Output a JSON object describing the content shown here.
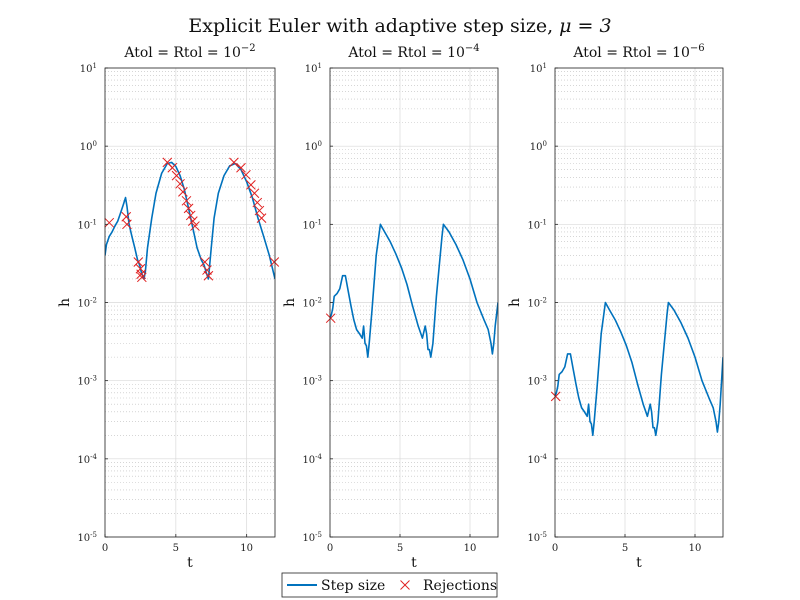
{
  "figure": {
    "title_prefix": "Explicit Euler with adaptive step size, ",
    "title_math": "μ = 3"
  },
  "legend": {
    "entries": [
      "Step size",
      "Rejections"
    ]
  },
  "colors": {
    "line": "#0072BD",
    "marker": "#E02020",
    "major_grid": "#d9d9d9",
    "minor_grid": "#bdbdbd",
    "axis": "#222222"
  },
  "chart_data": [
    {
      "type": "line",
      "title": "Atol = Rtol = 10",
      "title_exp": "−2",
      "xlabel": "t",
      "ylabel": "h",
      "xlim": [
        0,
        12
      ],
      "ylim": [
        1e-05,
        10
      ],
      "yscale": "log",
      "grid": "major+minor",
      "xticks": [
        0,
        5,
        10
      ],
      "xtick_labels": [
        "0",
        "5",
        "10"
      ],
      "yticks": [
        1e-05,
        0.0001,
        0.001,
        0.01,
        0.1,
        1,
        10
      ],
      "ytick_bases": [
        "10",
        "10",
        "10",
        "10",
        "10",
        "10",
        "10"
      ],
      "ytick_exps": [
        "-5",
        "-4",
        "-3",
        "-2",
        "-1",
        "0",
        "1"
      ],
      "series": [
        {
          "name": "Step size",
          "x": [
            0,
            0.1,
            0.3,
            0.5,
            0.7,
            0.9,
            1.1,
            1.3,
            1.45,
            1.55,
            1.7,
            1.9,
            2.1,
            2.3,
            2.45,
            2.55,
            2.65,
            2.75,
            2.85,
            3.0,
            3.3,
            3.6,
            4.0,
            4.4,
            4.7,
            5.0,
            5.3,
            5.6,
            5.9,
            6.2,
            6.5,
            6.8,
            7.0,
            7.15,
            7.3,
            7.5,
            7.7,
            8.0,
            8.4,
            8.8,
            9.2,
            9.6,
            10.0,
            10.4,
            10.8,
            11.2,
            11.6,
            12.0
          ],
          "y": [
            0.04,
            0.055,
            0.07,
            0.08,
            0.095,
            0.11,
            0.14,
            0.18,
            0.22,
            0.17,
            0.1,
            0.07,
            0.05,
            0.035,
            0.03,
            0.025,
            0.022,
            0.02,
            0.025,
            0.05,
            0.12,
            0.25,
            0.45,
            0.6,
            0.62,
            0.55,
            0.42,
            0.28,
            0.16,
            0.09,
            0.05,
            0.035,
            0.03,
            0.024,
            0.02,
            0.05,
            0.12,
            0.25,
            0.42,
            0.56,
            0.6,
            0.5,
            0.35,
            0.22,
            0.12,
            0.07,
            0.04,
            0.02
          ]
        },
        {
          "name": "Rejections",
          "x": [
            0.3,
            1.5,
            1.55,
            2.35,
            2.5,
            2.55,
            2.6,
            4.4,
            4.75,
            5.05,
            5.3,
            5.5,
            5.75,
            5.9,
            6.05,
            6.2,
            6.35,
            7.05,
            7.2,
            7.3,
            9.1,
            9.6,
            9.95,
            10.3,
            10.55,
            10.75,
            10.9,
            11.05,
            11.95
          ],
          "y": [
            0.105,
            0.125,
            0.1,
            0.033,
            0.027,
            0.023,
            0.021,
            0.62,
            0.53,
            0.42,
            0.33,
            0.26,
            0.2,
            0.16,
            0.13,
            0.11,
            0.095,
            0.033,
            0.026,
            0.022,
            0.62,
            0.53,
            0.43,
            0.32,
            0.25,
            0.19,
            0.15,
            0.12,
            0.033
          ]
        }
      ]
    },
    {
      "type": "line",
      "title": "Atol = Rtol = 10",
      "title_exp": "−4",
      "xlabel": "t",
      "ylabel": "h",
      "xlim": [
        0,
        12
      ],
      "ylim": [
        1e-05,
        10
      ],
      "yscale": "log",
      "grid": "major+minor",
      "xticks": [
        0,
        5,
        10
      ],
      "xtick_labels": [
        "0",
        "5",
        "10"
      ],
      "yticks": [
        1e-05,
        0.0001,
        0.001,
        0.01,
        0.1,
        1,
        10
      ],
      "ytick_bases": [
        "10",
        "10",
        "10",
        "10",
        "10",
        "10",
        "10"
      ],
      "ytick_exps": [
        "-5",
        "-4",
        "-3",
        "-2",
        "-1",
        "0",
        "1"
      ],
      "series": [
        {
          "name": "Step size",
          "x": [
            0,
            0.1,
            0.2,
            0.3,
            0.5,
            0.7,
            0.9,
            1.1,
            1.3,
            1.5,
            1.7,
            1.9,
            2.1,
            2.3,
            2.4,
            2.5,
            2.6,
            2.7,
            2.8,
            3.0,
            3.3,
            3.6,
            3.9,
            4.3,
            4.7,
            5.1,
            5.5,
            5.9,
            6.3,
            6.6,
            6.8,
            6.9,
            7.0,
            7.1,
            7.2,
            7.35,
            7.6,
            8.0,
            8.1,
            8.5,
            9.0,
            9.5,
            10.0,
            10.5,
            11.0,
            11.3,
            11.5,
            11.6,
            11.7,
            11.8,
            12.0
          ],
          "y": [
            0.0063,
            0.007,
            0.0085,
            0.012,
            0.013,
            0.015,
            0.022,
            0.022,
            0.014,
            0.009,
            0.006,
            0.0045,
            0.004,
            0.0035,
            0.005,
            0.003,
            0.0028,
            0.002,
            0.003,
            0.008,
            0.04,
            0.1,
            0.08,
            0.06,
            0.042,
            0.028,
            0.017,
            0.009,
            0.005,
            0.0035,
            0.005,
            0.004,
            0.0025,
            0.0025,
            0.002,
            0.003,
            0.012,
            0.07,
            0.1,
            0.08,
            0.055,
            0.035,
            0.02,
            0.01,
            0.006,
            0.0045,
            0.003,
            0.0022,
            0.003,
            0.005,
            0.01
          ]
        },
        {
          "name": "Rejections",
          "x": [
            0.05
          ],
          "y": [
            0.0063
          ]
        }
      ]
    },
    {
      "type": "line",
      "title": "Atol = Rtol = 10",
      "title_exp": "−6",
      "xlabel": "t",
      "ylabel": "h",
      "xlim": [
        0,
        12
      ],
      "ylim": [
        1e-05,
        10
      ],
      "yscale": "log",
      "grid": "major+minor",
      "xticks": [
        0,
        5,
        10
      ],
      "xtick_labels": [
        "0",
        "5",
        "10"
      ],
      "yticks": [
        1e-05,
        0.0001,
        0.001,
        0.01,
        0.1,
        1,
        10
      ],
      "ytick_bases": [
        "10",
        "10",
        "10",
        "10",
        "10",
        "10",
        "10"
      ],
      "ytick_exps": [
        "-5",
        "-4",
        "-3",
        "-2",
        "-1",
        "0",
        "1"
      ],
      "series": [
        {
          "name": "Step size",
          "x": [
            0,
            0.1,
            0.2,
            0.3,
            0.5,
            0.7,
            0.9,
            1.1,
            1.3,
            1.5,
            1.7,
            1.9,
            2.1,
            2.3,
            2.4,
            2.5,
            2.6,
            2.7,
            2.8,
            3.0,
            3.3,
            3.6,
            3.9,
            4.3,
            4.7,
            5.1,
            5.5,
            5.9,
            6.3,
            6.6,
            6.8,
            6.9,
            7.0,
            7.1,
            7.2,
            7.35,
            7.6,
            8.0,
            8.1,
            8.5,
            9.0,
            9.5,
            10.0,
            10.5,
            11.0,
            11.3,
            11.5,
            11.6,
            11.7,
            11.8,
            12.0
          ],
          "y": [
            0.00063,
            0.0007,
            0.00085,
            0.0012,
            0.0013,
            0.0015,
            0.0022,
            0.0022,
            0.0014,
            0.0009,
            0.0006,
            0.00045,
            0.0004,
            0.00035,
            0.0005,
            0.0003,
            0.00028,
            0.0002,
            0.0003,
            0.0008,
            0.004,
            0.01,
            0.008,
            0.006,
            0.0042,
            0.0028,
            0.0017,
            0.0009,
            0.0005,
            0.00035,
            0.0005,
            0.0004,
            0.00025,
            0.00025,
            0.0002,
            0.0003,
            0.0012,
            0.007,
            0.01,
            0.008,
            0.0055,
            0.0035,
            0.002,
            0.001,
            0.0006,
            0.00045,
            0.0003,
            0.00022,
            0.0003,
            0.0005,
            0.002
          ]
        },
        {
          "name": "Rejections",
          "x": [
            0.05
          ],
          "y": [
            0.00063
          ]
        }
      ]
    }
  ]
}
